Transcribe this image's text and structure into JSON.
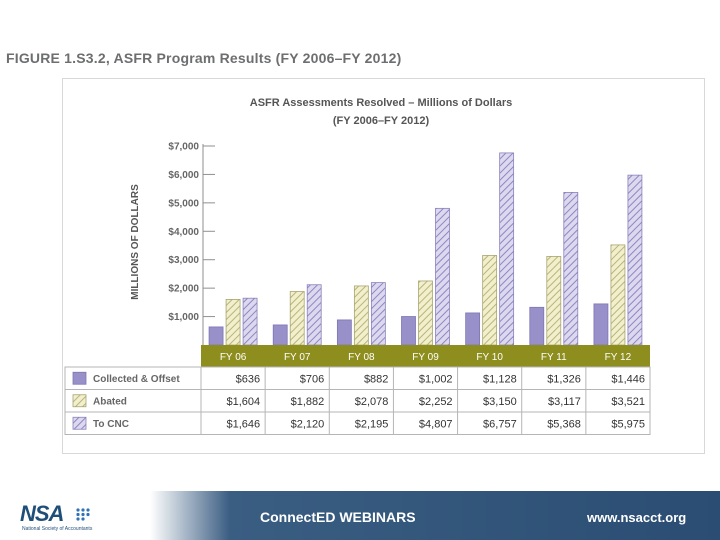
{
  "figure_title": "FIGURE 1.S3.2, ASFR Program Results (FY 2006–FY 2012)",
  "chart_data": {
    "type": "bar",
    "title": "ASFR Assessments Resolved – Millions of Dollars",
    "subtitle": "(FY 2006–FY 2012)",
    "ylabel": "MILLIONS OF DOLLARS",
    "xlabel": "",
    "ylim": [
      0,
      7000
    ],
    "yticks": [
      1000,
      2000,
      3000,
      4000,
      5000,
      6000,
      7000
    ],
    "ytick_labels": [
      "$1,000",
      "$2,000",
      "$3,000",
      "$4,000",
      "$5,000",
      "$6,000",
      "$7,000"
    ],
    "categories": [
      "FY 06",
      "FY 07",
      "FY 08",
      "FY 09",
      "FY 10",
      "FY 11",
      "FY 12"
    ],
    "series": [
      {
        "name": "Collected & Offset",
        "values": [
          636,
          706,
          882,
          1002,
          1128,
          1326,
          1446
        ],
        "labels": [
          "$636",
          "$706",
          "$882",
          "$1,002",
          "$1,128",
          "$1,326",
          "$1,446"
        ],
        "color": "#8e86c2",
        "pattern": "solid"
      },
      {
        "name": "Abated",
        "values": [
          1604,
          1882,
          2078,
          2252,
          3150,
          3117,
          3521
        ],
        "labels": [
          "$1,604",
          "$1,882",
          "$2,078",
          "$2,252",
          "$3,150",
          "$3,117",
          "$3,521"
        ],
        "color": "#e7e4b0",
        "pattern": "hatch"
      },
      {
        "name": "To CNC",
        "values": [
          1646,
          2120,
          2195,
          4807,
          6757,
          5368,
          5975
        ],
        "labels": [
          "$1,646",
          "$2,120",
          "$2,195",
          "$4,807",
          "$6,757",
          "$5,368",
          "$5,975"
        ],
        "color": "#cbc5e4",
        "pattern": "hatch"
      }
    ],
    "grid": false,
    "legend": "table-below"
  },
  "footer": {
    "logo_text": "NSA",
    "logo_subtext": "National Society of Accountants",
    "webinar_title": "ConnectED WEBINARS",
    "website": "www.nsacct.org"
  },
  "colors": {
    "category_band": "#8e8e1f",
    "axis": "#8f8f8f",
    "footer_blue": "#2b4d73"
  }
}
